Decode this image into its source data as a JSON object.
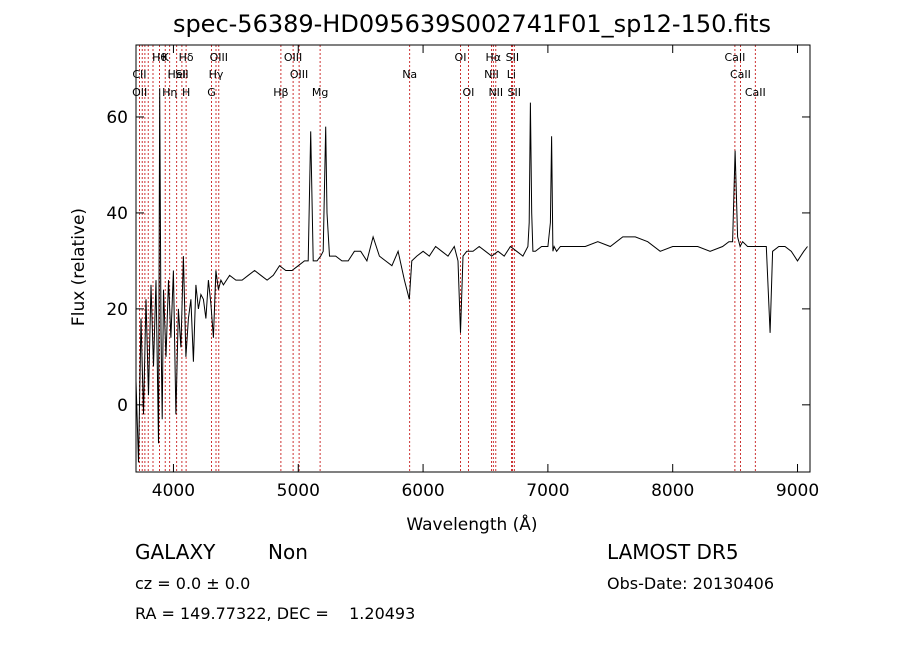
{
  "chart_data": {
    "type": "line",
    "title": "spec-56389-HD095639S002741F01_sp12-150.fits",
    "xlabel": "Wavelength (Å)",
    "ylabel": "Flux (relative)",
    "xlim": [
      3700,
      9100
    ],
    "ylim": [
      -14,
      75
    ],
    "xticks": [
      4000,
      5000,
      6000,
      7000,
      8000,
      9000
    ],
    "yticks": [
      0,
      20,
      40,
      60
    ],
    "grid": false,
    "series": [
      {
        "x": [
          3700,
          3720,
          3740,
          3760,
          3780,
          3800,
          3820,
          3840,
          3860,
          3880,
          3890,
          3900,
          3910,
          3920,
          3940,
          3960,
          3980,
          4000,
          4020,
          4040,
          4060,
          4080,
          4100,
          4120,
          4140,
          4160,
          4180,
          4200,
          4220,
          4240,
          4260,
          4280,
          4300,
          4320,
          4340,
          4360,
          4380,
          4400,
          4450,
          4500,
          4550,
          4600,
          4650,
          4700,
          4750,
          4800,
          4850,
          4900,
          4950,
          5000,
          5050,
          5080,
          5100,
          5120,
          5150,
          5180,
          5200,
          5220,
          5230,
          5250,
          5300,
          5350,
          5400,
          5450,
          5500,
          5550,
          5600,
          5650,
          5700,
          5750,
          5800,
          5850,
          5890,
          5910,
          5950,
          6000,
          6050,
          6100,
          6150,
          6200,
          6250,
          6280,
          6300,
          6320,
          6350,
          6400,
          6450,
          6500,
          6550,
          6600,
          6650,
          6700,
          6750,
          6800,
          6840,
          6850,
          6860,
          6870,
          6880,
          6900,
          6950,
          7000,
          7020,
          7030,
          7040,
          7050,
          7070,
          7100,
          7200,
          7300,
          7400,
          7500,
          7600,
          7700,
          7800,
          7900,
          8000,
          8100,
          8200,
          8300,
          8400,
          8450,
          8480,
          8500,
          8520,
          8540,
          8560,
          8600,
          8650,
          8700,
          8750,
          8780,
          8800,
          8850,
          8900,
          8950,
          9000,
          9050,
          9080
        ],
        "y": [
          5,
          -12,
          18,
          -2,
          22,
          2,
          25,
          8,
          26,
          -8,
          66,
          15,
          -3,
          24,
          10,
          26,
          14,
          28,
          -2,
          20,
          12,
          31,
          10,
          18,
          22,
          9,
          25,
          20,
          23,
          22,
          18,
          26,
          21,
          14,
          28,
          24,
          26,
          25,
          27,
          26,
          26,
          27,
          28,
          27,
          26,
          27,
          29,
          28,
          28,
          29,
          30,
          30,
          57,
          30,
          30,
          31,
          32,
          58,
          40,
          31,
          31,
          30,
          30,
          32,
          32,
          30,
          35,
          31,
          30,
          29,
          32,
          26,
          22,
          30,
          31,
          32,
          31,
          33,
          32,
          31,
          33,
          30,
          15,
          31,
          32,
          32,
          33,
          32,
          31,
          32,
          31,
          33,
          32,
          31,
          33,
          38,
          63,
          40,
          32,
          32,
          33,
          33,
          38,
          56,
          32,
          33,
          32,
          33,
          33,
          33,
          34,
          33,
          35,
          35,
          34,
          32,
          33,
          33,
          33,
          32,
          33,
          34,
          34,
          53,
          35,
          33,
          34,
          33,
          33,
          33,
          33,
          15,
          32,
          33,
          33,
          32,
          30,
          32,
          33
        ]
      }
    ],
    "lines": [
      {
        "name": "CII",
        "x": 3727,
        "row": 2
      },
      {
        "name": "OII",
        "x": 3730,
        "row": 3
      },
      {
        "name": "Hθ",
        "x": 3889,
        "row": 1
      },
      {
        "name": "Hη",
        "x": 3970,
        "row": 3
      },
      {
        "name": "HeI",
        "x": 4026,
        "row": 2
      },
      {
        "name": "K",
        "x": 3934,
        "row": 1
      },
      {
        "name": "H",
        "x": 4101,
        "row": 3
      },
      {
        "name": "Hδ",
        "x": 4101,
        "row": 1
      },
      {
        "name": "SII",
        "x": 4068,
        "row": 2
      },
      {
        "name": "OIII",
        "x": 4363,
        "row": 1
      },
      {
        "name": "Hγ",
        "x": 4341,
        "row": 2
      },
      {
        "name": "G",
        "x": 4305,
        "row": 3
      },
      {
        "name": "OIII",
        "x": 4959,
        "row": 1
      },
      {
        "name": "OIII",
        "x": 5007,
        "row": 2
      },
      {
        "name": "Hβ",
        "x": 4861,
        "row": 3
      },
      {
        "name": "Mg",
        "x": 5175,
        "row": 3
      },
      {
        "name": "Na",
        "x": 5893,
        "row": 2
      },
      {
        "name": "OI",
        "x": 6300,
        "row": 1
      },
      {
        "name": "OI",
        "x": 6363,
        "row": 3
      },
      {
        "name": "Hα",
        "x": 6563,
        "row": 1
      },
      {
        "name": "NII",
        "x": 6548,
        "row": 2
      },
      {
        "name": "NII",
        "x": 6583,
        "row": 3
      },
      {
        "name": "SII",
        "x": 6716,
        "row": 1
      },
      {
        "name": "Li",
        "x": 6708,
        "row": 2
      },
      {
        "name": "SII",
        "x": 6731,
        "row": 3
      },
      {
        "name": "CaII",
        "x": 8498,
        "row": 1
      },
      {
        "name": "CaII",
        "x": 8542,
        "row": 2
      },
      {
        "name": "CaII",
        "x": 8662,
        "row": 3
      }
    ],
    "line_marker_x": [
      3727,
      3750,
      3771,
      3798,
      3836,
      3889,
      3934,
      3970,
      4026,
      4068,
      4101,
      4305,
      4341,
      4363,
      4861,
      4959,
      5007,
      5175,
      5893,
      6300,
      6363,
      6548,
      6563,
      6583,
      6708,
      6716,
      6731,
      8498,
      8542,
      8662
    ]
  },
  "footer": {
    "class_label": "GALAXY",
    "subclass_label": "Non",
    "cz_text": "cz =  0.0 ± 0.0",
    "coord_text": "RA = 149.77322, DEC =    1.20493",
    "survey": "LAMOST DR5",
    "obs_date": "Obs-Date: 20130406"
  }
}
